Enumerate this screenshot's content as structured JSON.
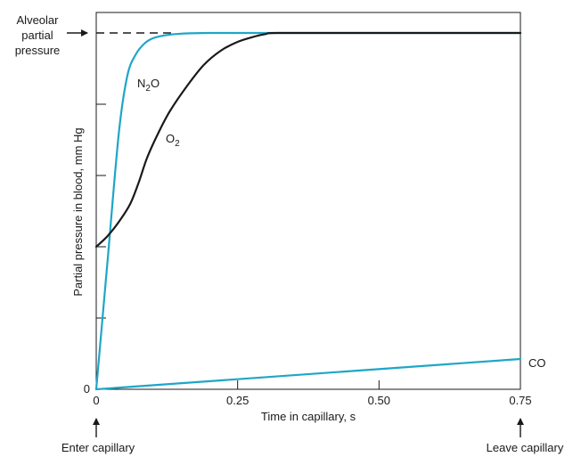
{
  "chart_data": {
    "type": "line",
    "title": "",
    "xlabel": "Time in capillary, s",
    "ylabel": "Partial pressure in blood, mm Hg",
    "xlim": [
      0,
      0.75
    ],
    "ylim": [
      0,
      1
    ],
    "x_ticks": [
      "0",
      "0.25",
      "0.50",
      "0.75"
    ],
    "y_ticks": [
      "0"
    ],
    "grid": false,
    "alveolar_label_lines": [
      "Alveolar",
      "partial",
      "pressure"
    ],
    "enter_label": "Enter capillary",
    "leave_label": "Leave capillary",
    "series": [
      {
        "name_base": "N",
        "name_sub": "2",
        "name_tail": "O",
        "color": "#1ea6c8",
        "x": [
          0,
          0.02,
          0.04,
          0.055,
          0.07,
          0.085,
          0.1,
          0.12,
          0.15,
          0.2,
          0.3,
          0.45,
          0.6,
          0.75
        ],
        "y": [
          0,
          0.36,
          0.72,
          0.88,
          0.94,
          0.97,
          0.985,
          0.993,
          0.998,
          1.0,
          1.0,
          1.0,
          1.0,
          1.0
        ]
      },
      {
        "name_base": "O",
        "name_sub": "2",
        "name_tail": "",
        "color": "#1a1a1a",
        "x": [
          0,
          0.02,
          0.04,
          0.06,
          0.075,
          0.09,
          0.11,
          0.13,
          0.16,
          0.19,
          0.22,
          0.25,
          0.28,
          0.3,
          0.32,
          0.45,
          0.6,
          0.75
        ],
        "y": [
          0.4,
          0.43,
          0.47,
          0.52,
          0.58,
          0.65,
          0.72,
          0.78,
          0.85,
          0.91,
          0.95,
          0.975,
          0.99,
          0.997,
          1.0,
          1.0,
          1.0,
          1.0
        ]
      },
      {
        "name_base": "CO",
        "name_sub": "",
        "name_tail": "",
        "color": "#1ea6c8",
        "x": [
          0,
          0.75
        ],
        "y": [
          0,
          0.085
        ]
      }
    ]
  }
}
